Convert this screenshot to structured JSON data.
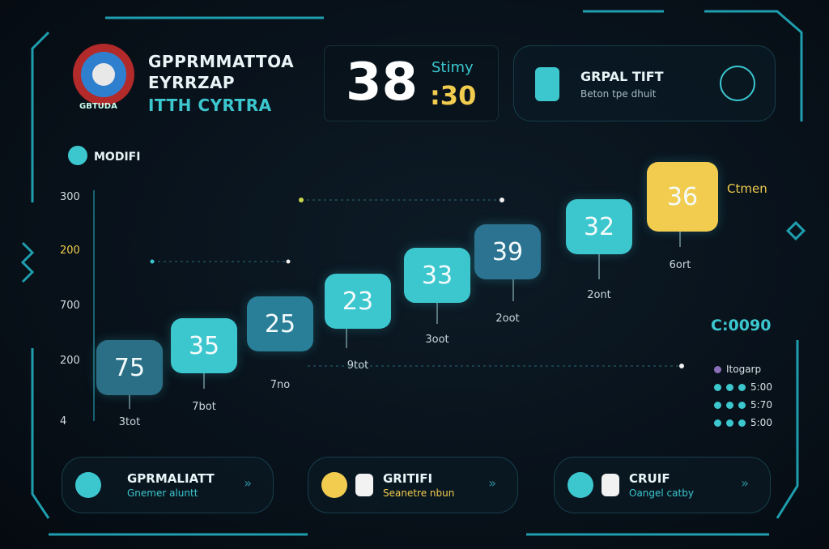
{
  "header": {
    "logo_text": "GBTUDA",
    "title_lines": [
      "GPPRMMATTOA",
      "EYRRZAP",
      "ITTH CYRTRA"
    ]
  },
  "timer": {
    "main": "38",
    "label": "Stimy",
    "seconds": ":30"
  },
  "info_card": {
    "title": "GRPAL TIFT",
    "subtitle": "Beton tpe dhuit"
  },
  "section": {
    "label": "MODIFI"
  },
  "chart": {
    "y_labels": [
      "300",
      "200",
      "700",
      "200",
      "4"
    ],
    "callout": "Ctmen",
    "tiles": [
      {
        "value": "75",
        "label": "3tot",
        "color": "#2a6f86"
      },
      {
        "value": "35",
        "label": "7bot",
        "color": "#3cc7cf"
      },
      {
        "value": "25",
        "label": "7no",
        "color": "#2a7f98"
      },
      {
        "value": "23",
        "label": "9tot",
        "color": "#3cc7cf"
      },
      {
        "value": "33",
        "label": "3oot",
        "color": "#3cc7cf"
      },
      {
        "value": "39",
        "label": "2oot",
        "color": "#2b7390"
      },
      {
        "value": "32",
        "label": "2ont",
        "color": "#3cc7cf"
      },
      {
        "value": "36",
        "label": "6ort",
        "color": "#f1cc4f"
      }
    ]
  },
  "legend": {
    "title": "C:0090",
    "items": [
      "Itogarp",
      "5:00",
      "5:70",
      "5:00"
    ]
  },
  "buttons": [
    {
      "title": "GPRMALIATT",
      "subtitle": "Gnemer aluntt"
    },
    {
      "title": "GRITIFI",
      "subtitle": "Seanetre nbun"
    },
    {
      "title": "CRUIF",
      "subtitle": "Oangel catby"
    }
  ]
}
